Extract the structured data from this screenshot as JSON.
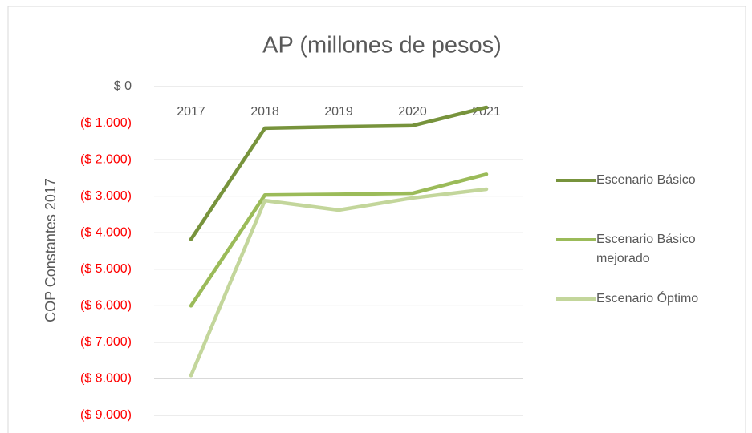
{
  "chart_data": {
    "type": "line",
    "title": "AP (millones de pesos)",
    "y_label": "COP Constantes 2017",
    "categories": [
      "2017",
      "2018",
      "2019",
      "2020",
      "2021"
    ],
    "series": [
      {
        "name": "Escenario Básico",
        "color": "#77933c",
        "values": [
          -4180,
          -1140,
          -1100,
          -1070,
          -570
        ]
      },
      {
        "name": "Escenario Básico mejorado",
        "color": "#9bbb59",
        "values": [
          -6000,
          -2970,
          -2950,
          -2920,
          -2400
        ]
      },
      {
        "name": "Escenario Óptimo",
        "color": "#c3d69b",
        "values": [
          -7910,
          -3120,
          -3380,
          -3050,
          -2810
        ]
      }
    ],
    "ylim": [
      -9000,
      0
    ],
    "yticks": [
      {
        "value": 0,
        "label": "$ 0"
      },
      {
        "value": -1000,
        "label": "($ 1.000)"
      },
      {
        "value": -2000,
        "label": "($ 2.000)"
      },
      {
        "value": -3000,
        "label": "($ 3.000)"
      },
      {
        "value": -4000,
        "label": "($ 4.000)"
      },
      {
        "value": -5000,
        "label": "($ 5.000)"
      },
      {
        "value": -6000,
        "label": "($ 6.000)"
      },
      {
        "value": -7000,
        "label": "($ 7.000)"
      },
      {
        "value": -8000,
        "label": "($ 8.000)"
      },
      {
        "value": -9000,
        "label": "($ 9.000)"
      }
    ],
    "grid": true,
    "legend": "right",
    "tick_label_color": "#595959",
    "negative_tick_label_color": "#ff0000"
  }
}
